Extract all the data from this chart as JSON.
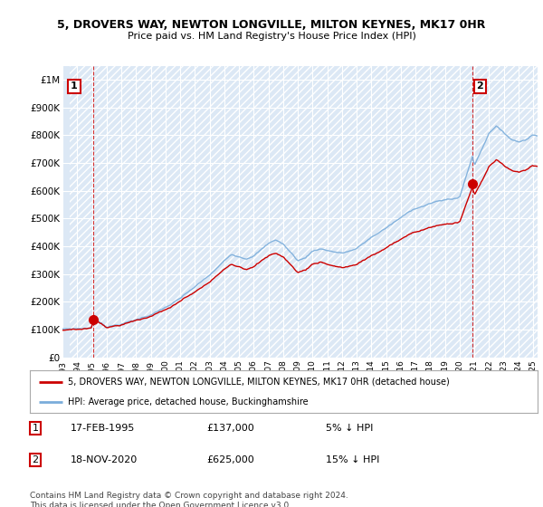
{
  "title_line1": "5, DROVERS WAY, NEWTON LONGVILLE, MILTON KEYNES, MK17 0HR",
  "title_line2": "Price paid vs. HM Land Registry's House Price Index (HPI)",
  "ylim": [
    0,
    1050000
  ],
  "yticks": [
    0,
    100000,
    200000,
    300000,
    400000,
    500000,
    600000,
    700000,
    800000,
    900000,
    1000000
  ],
  "ytick_labels": [
    "£0",
    "£100K",
    "£200K",
    "£300K",
    "£400K",
    "£500K",
    "£600K",
    "£700K",
    "£800K",
    "£900K",
    "£1M"
  ],
  "background_color": "#dce8f5",
  "hpi_color": "#7aaddb",
  "price_color": "#cc0000",
  "transaction1_date": "17-FEB-1995",
  "transaction1_price": 137000,
  "transaction1_hpi_diff": "5% ↓ HPI",
  "transaction2_date": "18-NOV-2020",
  "transaction2_price": 625000,
  "transaction2_hpi_diff": "15% ↓ HPI",
  "legend_label1": "5, DROVERS WAY, NEWTON LONGVILLE, MILTON KEYNES, MK17 0HR (detached house)",
  "legend_label2": "HPI: Average price, detached house, Buckinghamshire",
  "footer": "Contains HM Land Registry data © Crown copyright and database right 2024.\nThis data is licensed under the Open Government Licence v3.0.",
  "marker1_x": 1995.12,
  "marker1_y": 137000,
  "marker2_x": 2020.88,
  "marker2_y": 625000,
  "xmin": 1993.5,
  "xmax": 2025.3,
  "xtick_years": [
    1993,
    1994,
    1995,
    1996,
    1997,
    1998,
    1999,
    2000,
    2001,
    2002,
    2003,
    2004,
    2005,
    2006,
    2007,
    2008,
    2009,
    2010,
    2011,
    2012,
    2013,
    2014,
    2015,
    2016,
    2017,
    2018,
    2019,
    2020,
    2021,
    2022,
    2023,
    2024,
    2025
  ]
}
